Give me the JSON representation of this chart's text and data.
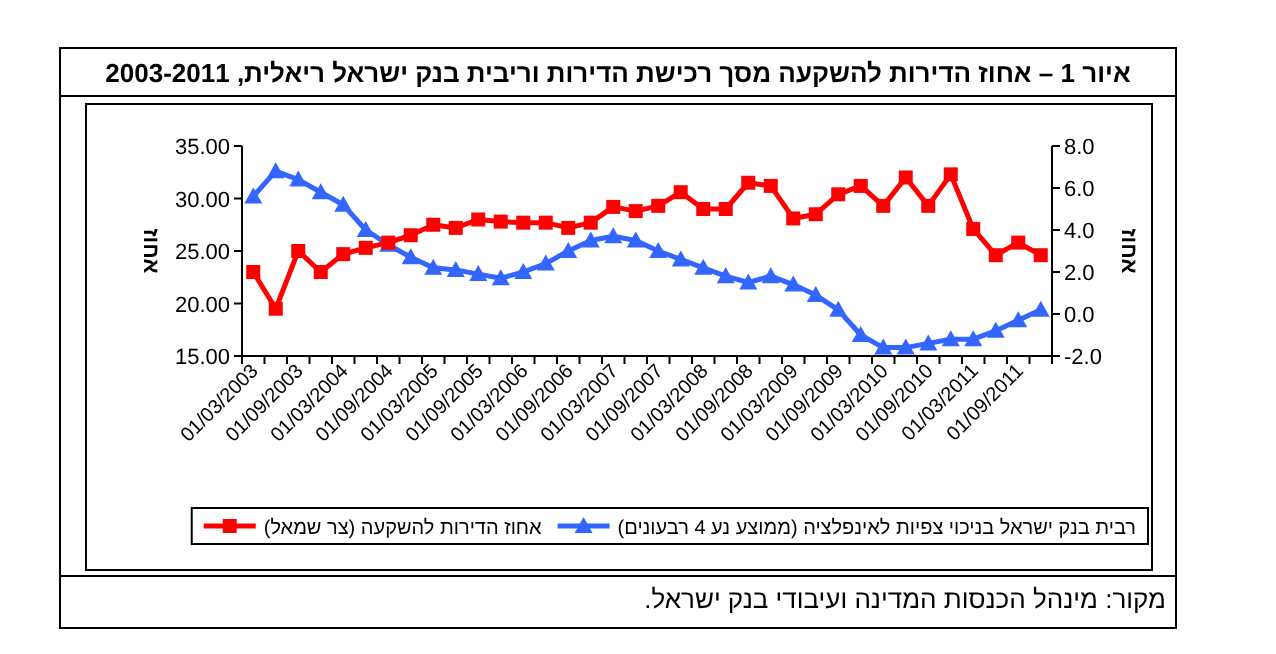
{
  "chart_data": {
    "type": "line",
    "title": "איור 1 – אחוז הדירות להשקעה מסך רכישת הדירות וריבית בנק ישראל ריאלית, 2003-2011",
    "ylabel": "אחוז",
    "y2label": "אחוז",
    "annotations": [
      "מקור: מינהל הכנסות המדינה ועיבודי בנק ישראל."
    ],
    "categories": [
      "01/03/2003",
      null,
      "01/09/2003",
      null,
      "01/03/2004",
      null,
      "01/09/2004",
      null,
      "01/03/2005",
      null,
      "01/09/2005",
      null,
      "01/03/2006",
      null,
      "01/09/2006",
      null,
      "01/03/2007",
      null,
      "01/09/2007",
      null,
      "01/03/2008",
      null,
      "01/09/2008",
      null,
      "01/03/2009",
      null,
      "01/09/2009",
      null,
      "01/03/2010",
      null,
      "01/09/2010",
      null,
      "01/03/2011",
      null,
      "01/09/2011",
      null
    ],
    "series": [
      {
        "name": "אחוז הדירות להשקעה (צר שמאל)",
        "color": "#ff0000",
        "marker": "square",
        "values": [
          23.0,
          19.5,
          25.0,
          23.0,
          24.7,
          25.3,
          25.8,
          26.5,
          27.5,
          27.2,
          28.0,
          27.8,
          27.7,
          27.7,
          27.2,
          27.7,
          29.2,
          28.8,
          29.3,
          30.6,
          29.0,
          29.0,
          31.5,
          31.2,
          28.1,
          28.5,
          30.4,
          31.2,
          29.3,
          32.0,
          29.3,
          32.3,
          27.1,
          24.6,
          25.8,
          24.6
        ]
      },
      {
        "name": "רבית בנק ישראל בניכוי צפיות לאינפלציה (ממוצע נע 4 רבעונים)",
        "color": "#3366ff",
        "marker": "triangle",
        "axis": "y2",
        "values": [
          5.6,
          6.8,
          6.4,
          5.8,
          5.2,
          4.0,
          3.3,
          2.7,
          2.2,
          2.1,
          1.9,
          1.7,
          2.0,
          2.4,
          3.0,
          3.5,
          3.7,
          3.5,
          3.0,
          2.6,
          2.2,
          1.8,
          1.5,
          1.8,
          1.4,
          0.9,
          0.2,
          -1.0,
          -1.6,
          -1.6,
          -1.4,
          -1.2,
          -1.2,
          -0.8,
          -0.3,
          0.2
        ]
      }
    ],
    "ylim": [
      15,
      35
    ],
    "yticks": [
      {
        "value": 15,
        "label": "15.00"
      },
      {
        "value": 20,
        "label": "20.00"
      },
      {
        "value": 25,
        "label": "25.00"
      },
      {
        "value": 30,
        "label": "30.00"
      },
      {
        "value": 35,
        "label": "35.00"
      }
    ],
    "y2lim": [
      -2,
      8
    ],
    "y2ticks": [
      {
        "value": -2,
        "label": "-2.0"
      },
      {
        "value": 0,
        "label": "0.0"
      },
      {
        "value": 2,
        "label": "2.0"
      },
      {
        "value": 4,
        "label": "4.0"
      },
      {
        "value": 6,
        "label": "6.0"
      },
      {
        "value": 8,
        "label": "8.0"
      }
    ],
    "legend": "bottom",
    "grid": false
  }
}
